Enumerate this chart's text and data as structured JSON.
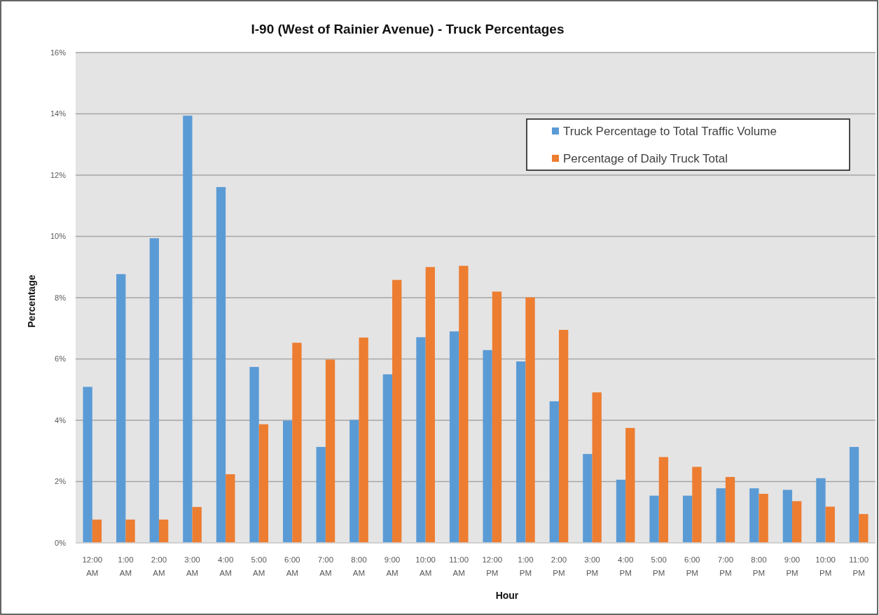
{
  "chart_data": {
    "type": "bar",
    "title": "I-90 (West of Rainier Avenue) - Truck Percentages",
    "xlabel": "Hour",
    "ylabel": "Percentage",
    "categories": [
      "12:00 AM",
      "1:00 AM",
      "2:00 AM",
      "3:00 AM",
      "4:00 AM",
      "5:00 AM",
      "6:00 AM",
      "7:00 AM",
      "8:00 AM",
      "9:00 AM",
      "10:00 AM",
      "11:00 AM",
      "12:00 PM",
      "1:00 PM",
      "2:00 PM",
      "3:00 PM",
      "4:00 PM",
      "5:00 PM",
      "6:00 PM",
      "7:00 PM",
      "8:00 PM",
      "9:00 PM",
      "10:00 PM",
      "11:00 PM"
    ],
    "series": [
      {
        "name": "Truck Percentage to Total Traffic Volume",
        "color": "#5b9bd5",
        "values": [
          5.09,
          8.77,
          9.94,
          13.94,
          11.61,
          5.74,
          3.99,
          3.13,
          4.01,
          5.5,
          6.71,
          6.9,
          6.29,
          5.92,
          4.62,
          2.9,
          2.06,
          1.54,
          1.54,
          1.78,
          1.78,
          1.73,
          2.11,
          3.13
        ]
      },
      {
        "name": "Percentage of Daily Truck Total",
        "color": "#ed7d31",
        "values": [
          0.76,
          0.76,
          0.76,
          1.17,
          2.24,
          3.87,
          6.53,
          5.98,
          6.7,
          8.58,
          9.0,
          9.04,
          8.2,
          8.01,
          6.95,
          4.91,
          3.75,
          2.8,
          2.48,
          2.15,
          1.6,
          1.36,
          1.18,
          0.94
        ]
      }
    ],
    "ylim": [
      0,
      16
    ],
    "yticks": [
      {
        "value": 0,
        "label": "0%"
      },
      {
        "value": 2,
        "label": "2%"
      },
      {
        "value": 4,
        "label": "4%"
      },
      {
        "value": 6,
        "label": "6%"
      },
      {
        "value": 8,
        "label": "8%"
      },
      {
        "value": 10,
        "label": "10%"
      },
      {
        "value": 12,
        "label": "12%"
      },
      {
        "value": 14,
        "label": "14%"
      },
      {
        "value": 16,
        "label": "16%"
      }
    ],
    "grid": "y",
    "legend": "top right"
  }
}
